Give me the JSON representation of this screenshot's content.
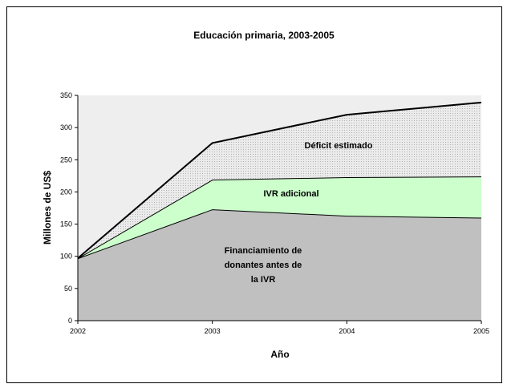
{
  "chart_data": {
    "type": "area",
    "stacked": true,
    "title": "Educación primaria, 2003-2005",
    "xlabel": "Año",
    "ylabel": "Millones de US$",
    "x": [
      "2002",
      "2003",
      "2004",
      "2005"
    ],
    "ylim": [
      0,
      350
    ],
    "yticks": [
      "0",
      "50",
      "100",
      "150",
      "200",
      "250",
      "300",
      "350"
    ],
    "grid": false,
    "series": [
      {
        "name": "Financiamiento de donantes antes de la IVR",
        "label_lines": [
          "Financiamiento de",
          "donantes antes de",
          "la IVR"
        ],
        "values": [
          97,
          173,
          163,
          160
        ],
        "color": "#c0c0c0"
      },
      {
        "name": "IVR adicional",
        "label_lines": [
          "IVR adicional"
        ],
        "values": [
          0,
          46,
          60,
          64
        ],
        "color": "#ccffcc"
      },
      {
        "name": "Déficit estimado",
        "label_lines": [
          "Déficit estimado"
        ],
        "values": [
          0,
          57,
          97,
          115
        ],
        "color": "#dadada"
      }
    ],
    "plot_background": "#eeeeee"
  }
}
